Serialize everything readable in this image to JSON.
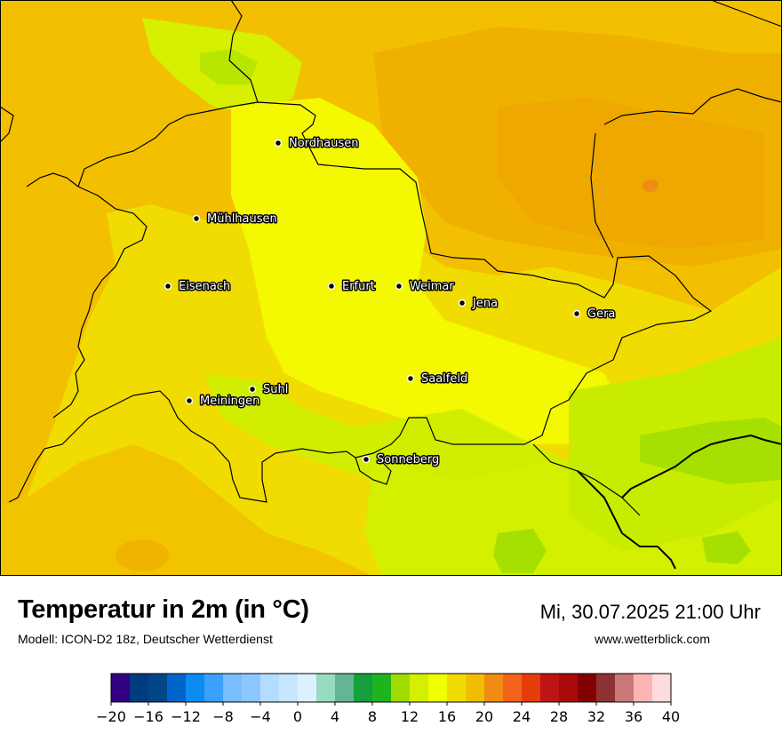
{
  "header": {
    "title": "Temperatur in 2m (in °C)",
    "model": "Modell: ICON-D2 18z, Deutscher Wetterdienst",
    "datetime": "Mi, 30.07.2025 21:00 Uhr",
    "website": "www.wetterblick.com"
  },
  "cities": [
    {
      "name": "Nordhausen"
    },
    {
      "name": "Mühlhausen"
    },
    {
      "name": "Eisenach"
    },
    {
      "name": "Erfurt"
    },
    {
      "name": "Weimar"
    },
    {
      "name": "Jena"
    },
    {
      "name": "Gera"
    },
    {
      "name": "Suhl"
    },
    {
      "name": "Meiningen"
    },
    {
      "name": "Saalfeld"
    },
    {
      "name": "Sonneberg"
    }
  ],
  "legend": {
    "tick_labels": [
      "−20",
      "−16",
      "−12",
      "−8",
      "−4",
      "0",
      "4",
      "8",
      "12",
      "16",
      "20",
      "24",
      "28",
      "32",
      "36",
      "40"
    ],
    "colors": [
      "#320082",
      "#003c82",
      "#004687",
      "#0064c8",
      "#0a8cf0",
      "#3ca0ff",
      "#78beff",
      "#8cc8ff",
      "#b4dcff",
      "#c8e6ff",
      "#dcf0ff",
      "#96dcc0",
      "#64b496",
      "#14a03c",
      "#1eb41e",
      "#a0dc00",
      "#d2f000",
      "#f0ff00",
      "#f0dc00",
      "#f0be00",
      "#f08c14",
      "#f0641e",
      "#e63c0a",
      "#be1414",
      "#aa0a0a",
      "#820000",
      "#8c3232",
      "#c87878",
      "#ffb4b4",
      "#ffdcdc"
    ]
  },
  "colors": {
    "base_map": "#f0e000",
    "warm": "#f2c200",
    "warmer": "#f0b000",
    "cool": "#d6f000",
    "cooler": "#a6e000",
    "hot_spot": "#f08c14",
    "border_line": "#000000"
  }
}
